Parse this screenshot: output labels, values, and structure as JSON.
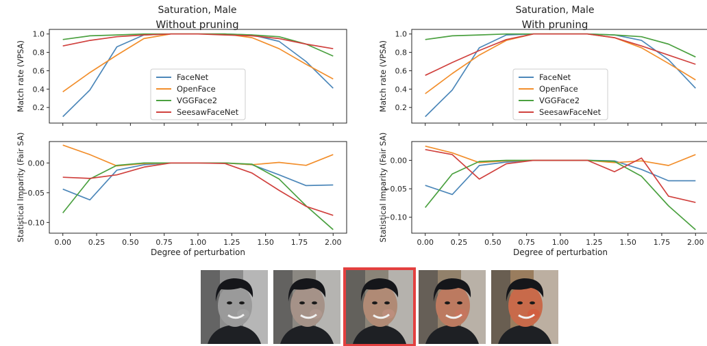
{
  "figure": {
    "left_title": "Saturation, Male",
    "left_subtitle": "Without pruning",
    "right_title": "Saturation, Male",
    "right_subtitle": "With pruning"
  },
  "colors": {
    "FaceNet": "#4c87b9",
    "OpenFace": "#f28e2b",
    "VGGFace2": "#4aa03f",
    "SeesawFaceNet": "#d0403d",
    "selected_frame": "#e3403f"
  },
  "chart_data": [
    {
      "type": "line",
      "panel": "top-left",
      "title": "",
      "ylabel": "Match rate (VPSA)",
      "xlabel": "",
      "x": [
        0.0,
        0.2,
        0.4,
        0.6,
        0.8,
        1.0,
        1.2,
        1.4,
        1.6,
        1.8,
        2.0
      ],
      "xlim": [
        -0.1,
        2.1
      ],
      "ylim": [
        0.03,
        1.05
      ],
      "yticks": [
        "1.0",
        "0.8",
        "0.6",
        "0.4",
        "0.2"
      ],
      "ytick_values": [
        1.0,
        0.8,
        0.6,
        0.4,
        0.2
      ],
      "legend": "center",
      "series": [
        {
          "name": "FaceNet",
          "values": [
            0.1,
            0.39,
            0.86,
            0.99,
            1.0,
            1.0,
            1.0,
            0.99,
            0.92,
            0.7,
            0.41
          ]
        },
        {
          "name": "OpenFace",
          "values": [
            0.37,
            0.58,
            0.77,
            0.95,
            1.0,
            1.0,
            1.0,
            0.96,
            0.84,
            0.67,
            0.51
          ]
        },
        {
          "name": "VGGFace2",
          "values": [
            0.94,
            0.98,
            0.99,
            1.0,
            1.0,
            1.0,
            1.0,
            0.99,
            0.97,
            0.89,
            0.76
          ]
        },
        {
          "name": "SeesawFaceNet",
          "values": [
            0.87,
            0.93,
            0.97,
            0.99,
            1.0,
            1.0,
            0.99,
            0.98,
            0.95,
            0.89,
            0.84
          ]
        }
      ]
    },
    {
      "type": "line",
      "panel": "bottom-left",
      "title": "",
      "ylabel": "Statistical Imparity (Fair SA)",
      "xlabel": "Degree of perturbation",
      "x": [
        0.0,
        0.2,
        0.4,
        0.6,
        0.8,
        1.0,
        1.2,
        1.4,
        1.6,
        1.8,
        2.0
      ],
      "xlim": [
        -0.1,
        2.1
      ],
      "ylim": [
        -0.118,
        0.036
      ],
      "xticks": [
        "0.00",
        "0.25",
        "0.50",
        "0.75",
        "1.00",
        "1.25",
        "1.50",
        "1.75",
        "2.00"
      ],
      "xtick_values": [
        0.0,
        0.25,
        0.5,
        0.75,
        1.0,
        1.25,
        1.5,
        1.75,
        2.0
      ],
      "yticks": [
        "0.00",
        "−0.05",
        "−0.10"
      ],
      "ytick_values": [
        0.0,
        -0.05,
        -0.1
      ],
      "series": [
        {
          "name": "FaceNet",
          "values": [
            -0.044,
            -0.062,
            -0.012,
            -0.003,
            0.0,
            0.0,
            0.0,
            -0.003,
            -0.02,
            -0.038,
            -0.037
          ]
        },
        {
          "name": "OpenFace",
          "values": [
            0.03,
            0.014,
            -0.005,
            -0.001,
            0.0,
            0.0,
            0.0,
            -0.003,
            0.001,
            -0.004,
            0.014
          ]
        },
        {
          "name": "VGGFace2",
          "values": [
            -0.084,
            -0.027,
            -0.004,
            0.0,
            0.0,
            0.0,
            0.0,
            -0.002,
            -0.027,
            -0.072,
            -0.112
          ]
        },
        {
          "name": "SeesawFaceNet",
          "values": [
            -0.024,
            -0.026,
            -0.02,
            -0.007,
            0.0,
            0.0,
            -0.001,
            -0.017,
            -0.046,
            -0.073,
            -0.088
          ]
        }
      ]
    },
    {
      "type": "line",
      "panel": "top-right",
      "title": "",
      "ylabel": "Match rate (VPSA)",
      "xlabel": "",
      "x": [
        0.0,
        0.2,
        0.4,
        0.6,
        0.8,
        1.0,
        1.2,
        1.4,
        1.6,
        1.8,
        2.0
      ],
      "xlim": [
        -0.1,
        2.1
      ],
      "ylim": [
        0.03,
        1.05
      ],
      "yticks": [
        "1.0",
        "0.8",
        "0.6",
        "0.4",
        "0.2"
      ],
      "ytick_values": [
        1.0,
        0.8,
        0.6,
        0.4,
        0.2
      ],
      "legend": "center",
      "series": [
        {
          "name": "FaceNet",
          "values": [
            0.1,
            0.39,
            0.85,
            0.99,
            1.0,
            1.0,
            1.0,
            0.99,
            0.93,
            0.72,
            0.41
          ]
        },
        {
          "name": "OpenFace",
          "values": [
            0.35,
            0.57,
            0.77,
            0.93,
            1.0,
            1.0,
            1.0,
            0.96,
            0.85,
            0.68,
            0.5
          ]
        },
        {
          "name": "VGGFace2",
          "values": [
            0.94,
            0.98,
            0.99,
            1.0,
            1.0,
            1.0,
            1.0,
            0.99,
            0.97,
            0.89,
            0.75
          ]
        },
        {
          "name": "SeesawFaceNet",
          "values": [
            0.55,
            0.69,
            0.82,
            0.94,
            1.0,
            1.0,
            1.0,
            0.96,
            0.87,
            0.77,
            0.67
          ]
        }
      ]
    },
    {
      "type": "line",
      "panel": "bottom-right",
      "title": "",
      "ylabel": "Statistical Imparity (Fair SA)",
      "xlabel": "Degree of perturbation",
      "x": [
        0.0,
        0.2,
        0.4,
        0.6,
        0.8,
        1.0,
        1.2,
        1.4,
        1.6,
        1.8,
        2.0
      ],
      "xlim": [
        -0.1,
        2.1
      ],
      "ylim": [
        -0.128,
        0.033
      ],
      "xticks": [
        "0.00",
        "0.25",
        "0.50",
        "0.75",
        "1.00",
        "1.25",
        "1.50",
        "1.75",
        "2.00"
      ],
      "xtick_values": [
        0.0,
        0.25,
        0.5,
        0.75,
        1.0,
        1.25,
        1.5,
        1.75,
        2.0
      ],
      "yticks": [
        "0.00",
        "−0.05",
        "−0.10"
      ],
      "ytick_values": [
        0.0,
        -0.05,
        -0.1
      ],
      "series": [
        {
          "name": "FaceNet",
          "values": [
            -0.044,
            -0.06,
            -0.009,
            -0.003,
            0.0,
            0.0,
            0.0,
            -0.001,
            -0.016,
            -0.036,
            -0.036
          ]
        },
        {
          "name": "OpenFace",
          "values": [
            0.025,
            0.013,
            -0.004,
            -0.001,
            0.0,
            0.0,
            0.0,
            -0.004,
            -0.001,
            -0.009,
            0.01
          ]
        },
        {
          "name": "VGGFace2",
          "values": [
            -0.083,
            -0.024,
            -0.002,
            0.0,
            0.0,
            0.0,
            0.0,
            -0.002,
            -0.028,
            -0.08,
            -0.122
          ]
        },
        {
          "name": "SeesawFaceNet",
          "values": [
            0.019,
            0.01,
            -0.033,
            -0.006,
            0.0,
            0.0,
            0.0,
            -0.02,
            0.004,
            -0.063,
            -0.074
          ]
        }
      ]
    }
  ],
  "thumbnails": [
    {
      "label": "saturation-0.0",
      "saturation": 0.0,
      "selected": false
    },
    {
      "label": "saturation-0.5",
      "saturation": 0.5,
      "selected": false
    },
    {
      "label": "saturation-1.0",
      "saturation": 1.0,
      "selected": true
    },
    {
      "label": "saturation-1.5",
      "saturation": 1.5,
      "selected": false
    },
    {
      "label": "saturation-2.0",
      "saturation": 2.0,
      "selected": false
    }
  ]
}
